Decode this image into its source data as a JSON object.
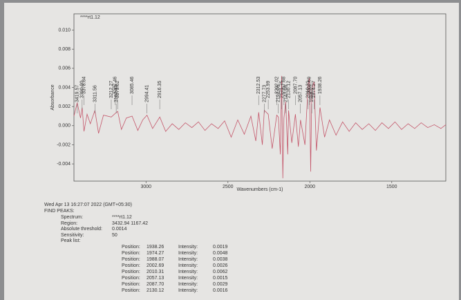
{
  "chart_data": {
    "type": "line",
    "title": "****rt1.12",
    "x_label": "Wavenumbers (cm-1)",
    "y_label": "Absorbance",
    "xlim": [
      3440,
      1170
    ],
    "ylim": [
      -0.0058,
      0.0117
    ],
    "xticks": [
      3000,
      2500,
      2000,
      1500
    ],
    "yticks": [
      -0.004,
      -0.002,
      {
        "value": 0,
        "label": "0.000"
      },
      0.002,
      0.004,
      0.006,
      0.008,
      {
        "value": 0.01,
        "label": "0.010"
      }
    ],
    "color": "#c4566a",
    "x": [
      3440,
      3420,
      3400,
      3390,
      3379,
      3360,
      3340,
      3312,
      3290,
      3260,
      3212,
      3187,
      3173,
      3150,
      3120,
      3085,
      3050,
      3020,
      2994,
      2960,
      2916,
      2880,
      2840,
      2800,
      2760,
      2720,
      2680,
      2640,
      2600,
      2560,
      2520,
      2480,
      2440,
      2400,
      2360,
      2330,
      2312,
      2290,
      2278,
      2254,
      2230,
      2202,
      2192,
      2180,
      2172,
      2165,
      2158,
      2147,
      2135,
      2130,
      2110,
      2088,
      2070,
      2057,
      2030,
      2010,
      2003,
      1995,
      1988,
      1974,
      1960,
      1938,
      1910,
      1880,
      1840,
      1800,
      1760,
      1720,
      1680,
      1640,
      1600,
      1560,
      1520,
      1480,
      1440,
      1400,
      1360,
      1320,
      1280,
      1240,
      1200,
      1170
    ],
    "values": [
      0.001,
      0.0024,
      0.0008,
      0.0019,
      -0.0006,
      0.0012,
      0.0002,
      0.0016,
      -0.0008,
      0.0011,
      0.0009,
      0.0013,
      0.0015,
      -0.0004,
      0.0008,
      0.001,
      -0.0005,
      0.0006,
      0.0011,
      -0.0003,
      0.0009,
      -0.0006,
      0.0002,
      -0.0004,
      0.0003,
      -0.0002,
      0.0004,
      -0.0005,
      0.0002,
      -0.0003,
      0.0005,
      -0.0012,
      0.0006,
      -0.0009,
      0.001,
      -0.0016,
      0.0014,
      -0.002,
      0.0016,
      0.0012,
      -0.0024,
      0.0011,
      0.0009,
      -0.003,
      0.0052,
      -0.0055,
      0.0008,
      0.0025,
      -0.003,
      0.0016,
      -0.0018,
      0.0012,
      -0.0022,
      0.0006,
      -0.002,
      0.0044,
      0.005,
      -0.0048,
      0.0038,
      0.0046,
      -0.0026,
      0.0019,
      -0.0012,
      0.0006,
      -0.001,
      0.0004,
      -0.0006,
      0.0003,
      -0.0004,
      0.0002,
      -0.0005,
      0.0003,
      -0.0003,
      0.0004,
      -0.0004,
      0.0002,
      -0.0003,
      0.0003,
      -0.0002,
      0.0001,
      -0.0003,
      0.0001
    ],
    "peaks": [
      {
        "value": 3419.57,
        "label": "3419.57"
      },
      {
        "value": 3390,
        "label": "3390.00"
      },
      {
        "value": 3378.84,
        "label": "3378.84"
      },
      {
        "value": 3311.56,
        "label": "3311.56"
      },
      {
        "value": 3212.27,
        "label": "3212.27"
      },
      {
        "value": 3187.46,
        "label": "3187.46"
      },
      {
        "value": 3182.12,
        "label": "3182.12"
      },
      {
        "value": 3173.62,
        "label": "3173.62"
      },
      {
        "value": 3085.46,
        "label": "3085.46"
      },
      {
        "value": 2994.41,
        "label": "2994.41"
      },
      {
        "value": 2916.35,
        "label": "2916.35"
      },
      {
        "value": 2312.53,
        "label": "2312.53"
      },
      {
        "value": 2277.73,
        "label": "2277.73"
      },
      {
        "value": 2253.99,
        "label": "2253.99"
      },
      {
        "value": 2202.02,
        "label": "2202.02"
      },
      {
        "value": 2192.06,
        "label": "2192.06"
      },
      {
        "value": 2171.75,
        "label": "2171.75"
      },
      {
        "value": 2157.88,
        "label": "2157.88"
      },
      {
        "value": 2147.08,
        "label": "2147.08"
      },
      {
        "value": 2130.12,
        "label": "2130.12"
      },
      {
        "value": 2087.7,
        "label": "2087.70"
      },
      {
        "value": 2057.13,
        "label": "2057.13"
      },
      {
        "value": 2010.31,
        "label": "2010.31"
      },
      {
        "value": 2002.69,
        "label": "2002.69"
      },
      {
        "value": 1988.07,
        "label": "1988.07"
      },
      {
        "value": 1974.27,
        "label": "1974.27"
      },
      {
        "value": 1938.26,
        "label": "1938.26"
      }
    ]
  },
  "report": {
    "timestamp": "Wed Apr 13 16:27:07 2022 (GMT+05:30)",
    "heading": "FIND PEAKS:",
    "fields": [
      [
        "Spectrum:",
        "****rt1.12"
      ],
      [
        "Region:",
        "3432.94     1167.42"
      ],
      [
        "Absolute threshold:",
        "0.0014"
      ],
      [
        "Sensitivity:",
        "50"
      ],
      [
        "Peak list:",
        ""
      ]
    ],
    "peak_rows": [
      [
        "Position:",
        "1938.26",
        "Intensity:",
        "0.0019"
      ],
      [
        "Position:",
        "1974.27",
        "Intensity:",
        "0.0048"
      ],
      [
        "Position:",
        "1988.07",
        "Intensity:",
        "0.0038"
      ],
      [
        "Position:",
        "2002.69",
        "Intensity:",
        "0.0026"
      ],
      [
        "Position:",
        "2010.31",
        "Intensity:",
        "0.0062"
      ],
      [
        "Position:",
        "2057.13",
        "Intensity:",
        "0.0015"
      ],
      [
        "Position:",
        "2087.70",
        "Intensity:",
        "0.0029"
      ],
      [
        "Position:",
        "2130.12",
        "Intensity:",
        "0.0016"
      ]
    ]
  }
}
